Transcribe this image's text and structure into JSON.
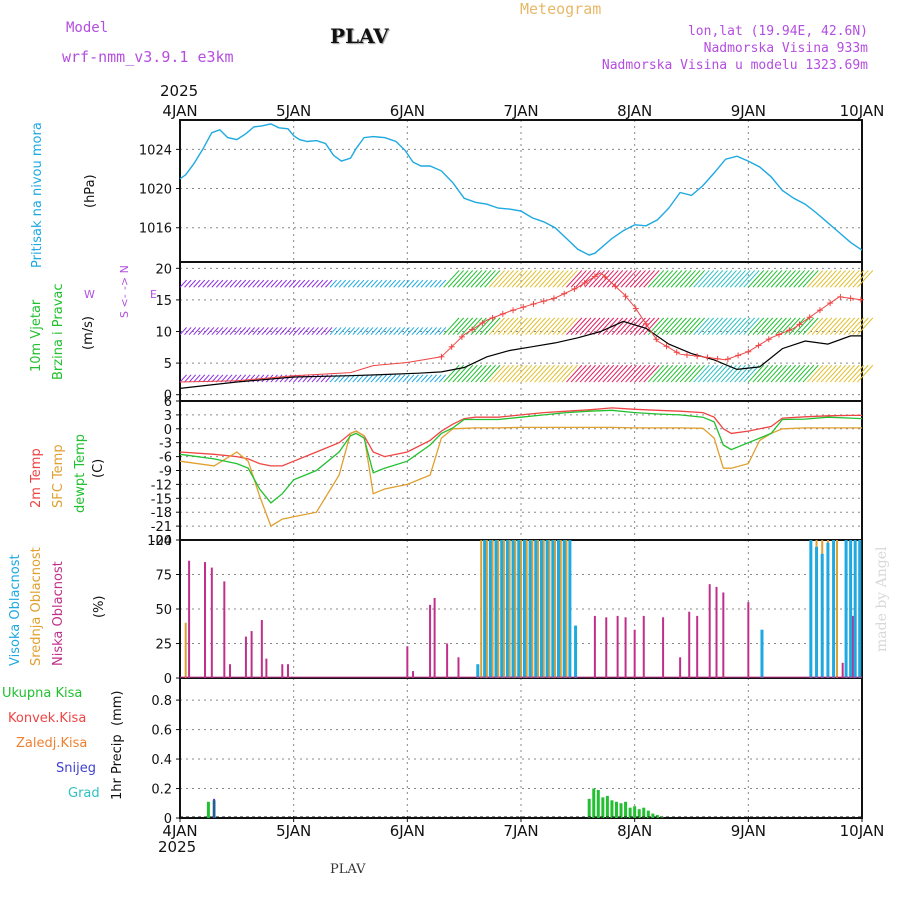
{
  "header": {
    "model_label": "Model",
    "model_name": "wrf-nmm_v3.9.1 e3km",
    "station": "PLAV",
    "title": "Meteogram",
    "coords": "lon,lat (19.94E, 42.6N)",
    "elevation": "Nadmorska Visina 933m",
    "model_elevation": "Nadmorska Visina u modelu 1323.69m",
    "year": "2025",
    "footer_station": "PLAV",
    "watermark": "made by Angel"
  },
  "colors": {
    "pressure": "#1ea9e1",
    "wind_violet": "#8a2be2",
    "grid": "#888888",
    "temp2m": "#ef4444",
    "sfc": "#e0a030",
    "dew": "#22c030",
    "high": "#1ea9e1",
    "mid": "#e0a030",
    "low": "#c0308a",
    "precip_total": "#22c030",
    "conv": "#ef4444",
    "frz": "#f08030",
    "snow": "#4040d0",
    "hail": "#30c0c0"
  },
  "chart_data": {
    "type": "meteogram",
    "x_axis": {
      "labels": [
        "4JAN",
        "5JAN",
        "6JAN",
        "7JAN",
        "8JAN",
        "9JAN",
        "10JAN"
      ],
      "unit": "days",
      "range": [
        0,
        6
      ]
    },
    "panels": {
      "pressure": {
        "type": "line",
        "ylabel": "Pritisak na nivou mora",
        "unit": "(hPa)",
        "ticks": [
          "1016",
          "1020",
          "1024"
        ],
        "ylim": [
          1012.5,
          1027
        ],
        "x": [
          0,
          0.05,
          0.12,
          0.2,
          0.28,
          0.35,
          0.42,
          0.5,
          0.58,
          0.65,
          0.72,
          0.8,
          0.87,
          0.95,
          1.0,
          1.05,
          1.12,
          1.2,
          1.28,
          1.35,
          1.42,
          1.5,
          1.55,
          1.62,
          1.7,
          1.8,
          1.9,
          1.98,
          2.05,
          2.12,
          2.2,
          2.3,
          2.4,
          2.5,
          2.6,
          2.7,
          2.8,
          2.9,
          3.0,
          3.1,
          3.2,
          3.3,
          3.4,
          3.5,
          3.6,
          3.65,
          3.7,
          3.8,
          3.9,
          4.0,
          4.1,
          4.2,
          4.3,
          4.4,
          4.5,
          4.6,
          4.7,
          4.8,
          4.9,
          5.0,
          5.1,
          5.2,
          5.3,
          5.4,
          5.5,
          5.6,
          5.7,
          5.8,
          5.9,
          6.0
        ],
        "values": [
          1021,
          1021.4,
          1022.5,
          1024,
          1025.7,
          1026,
          1025.2,
          1025,
          1025.6,
          1026.3,
          1026.4,
          1026.6,
          1026.2,
          1026.1,
          1025.4,
          1025,
          1024.8,
          1024.9,
          1024.6,
          1023.4,
          1022.8,
          1023.1,
          1024.1,
          1025.2,
          1025.3,
          1025.2,
          1024.8,
          1023.9,
          1022.7,
          1022.3,
          1022.3,
          1021.8,
          1020.6,
          1019,
          1018.6,
          1018.4,
          1018,
          1017.9,
          1017.7,
          1017,
          1016.6,
          1016,
          1014.9,
          1013.8,
          1013.2,
          1013.4,
          1013.9,
          1014.9,
          1015.7,
          1016.3,
          1016.2,
          1016.8,
          1018,
          1019.6,
          1019.3,
          1020.3,
          1021.6,
          1023,
          1023.3,
          1022.8,
          1022.2,
          1021.2,
          1019.8,
          1019,
          1018.4,
          1017.5,
          1016.5,
          1015.5,
          1014.5,
          1013.7
        ]
      },
      "wind": {
        "type": "line",
        "ylabel": "10m Vjetar Brzina i Pravac",
        "unit": "(m/s)",
        "ticks": [
          "0",
          "5",
          "10",
          "15",
          "20"
        ],
        "ylim": [
          -1,
          21
        ],
        "compass": [
          "N",
          "E",
          "S",
          "W"
        ],
        "levels": [
          2,
          9.5,
          17
        ],
        "mean_x": [
          0,
          0.5,
          1.0,
          1.5,
          1.8,
          2.1,
          2.3,
          2.5,
          2.7,
          2.9,
          3.1,
          3.3,
          3.5,
          3.7,
          3.9,
          4.1,
          4.3,
          4.5,
          4.7,
          4.9,
          5.1,
          5.3,
          5.5,
          5.7,
          5.9,
          6.0
        ],
        "mean_values": [
          1,
          2,
          2.8,
          3,
          3.2,
          3.4,
          3.6,
          4.3,
          6,
          7,
          7.6,
          8.2,
          9,
          10,
          11.6,
          10.5,
          8,
          6.5,
          5.5,
          4,
          4.4,
          7.3,
          8.5,
          8,
          9.3,
          9.3
        ],
        "gust_x": [
          0,
          0.5,
          1.0,
          1.5,
          1.7,
          2.0,
          2.3,
          2.5,
          2.7,
          2.9,
          3.1,
          3.3,
          3.5,
          3.7,
          3.9,
          4.0,
          4.2,
          4.4,
          4.6,
          4.8,
          5.0,
          5.2,
          5.4,
          5.6,
          5.8,
          6.0
        ],
        "gust_values": [
          2,
          2.2,
          3,
          3.5,
          4.6,
          5.1,
          6,
          9.5,
          11.8,
          13.2,
          14.3,
          15.3,
          17,
          19.3,
          16,
          13.9,
          8.5,
          6.4,
          6,
          5.5,
          6.8,
          9,
          10.5,
          13,
          15.5,
          15
        ]
      },
      "temperature": {
        "type": "line",
        "ylabel": "2m Temp / SFC Temp / dewpt Temp",
        "unit": "(C)",
        "ticks": [
          "-24",
          "-21",
          "-18",
          "-15",
          "-12",
          "-9",
          "-6",
          "-3",
          "0",
          "3",
          "6"
        ],
        "ylim": [
          -24,
          6
        ],
        "x": [
          0,
          0.3,
          0.5,
          0.6,
          0.7,
          0.8,
          0.9,
          1.0,
          1.2,
          1.4,
          1.5,
          1.55,
          1.62,
          1.7,
          1.8,
          2.0,
          2.2,
          2.3,
          2.4,
          2.5,
          2.6,
          2.8,
          3.0,
          3.2,
          3.4,
          3.6,
          3.8,
          4.0,
          4.2,
          4.4,
          4.6,
          4.7,
          4.78,
          4.85,
          5.0,
          5.1,
          5.2,
          5.3,
          5.5,
          5.7,
          5.9,
          6.0
        ],
        "series": [
          {
            "name": "2m Temp",
            "values": [
              -5,
              -5.5,
              -6,
              -6.5,
              -7.5,
              -8,
              -8,
              -7,
              -5,
              -3,
              -1,
              -0.5,
              -1.5,
              -5,
              -6,
              -5,
              -2.5,
              -0.5,
              1,
              2.2,
              2.5,
              2.5,
              3,
              3.5,
              3.8,
              4.1,
              4.5,
              4.2,
              4,
              3.8,
              3.5,
              2.5,
              0,
              -1,
              -0.5,
              0,
              0.5,
              2.3,
              2.6,
              2.8,
              2.9,
              2.9
            ]
          },
          {
            "name": "SFC Temp",
            "values": [
              -7,
              -8,
              -5,
              -7,
              -14.5,
              -21,
              -19.5,
              -19,
              -18,
              -10,
              -1,
              -0.5,
              -1.5,
              -14,
              -13,
              -12,
              -10,
              -2,
              0,
              0.1,
              0.2,
              0.2,
              0.3,
              0.3,
              0.3,
              0.3,
              0.3,
              0.2,
              0.2,
              0.2,
              0.1,
              -2,
              -8.5,
              -8.5,
              -7.5,
              -2.5,
              -1,
              0,
              0.2,
              0.2,
              0.2,
              0.2
            ]
          },
          {
            "name": "dewpt Temp",
            "values": [
              -5.5,
              -6.5,
              -7.5,
              -8.5,
              -13,
              -16,
              -14,
              -11,
              -9,
              -5,
              -1.5,
              -1,
              -2,
              -9.5,
              -8.5,
              -7,
              -3.5,
              -1,
              0.2,
              2,
              2,
              2,
              2.5,
              3,
              3.5,
              3.8,
              4,
              3.5,
              3.2,
              3,
              2.5,
              1.5,
              -3.5,
              -4.5,
              -3,
              -2,
              -1,
              2,
              2.1,
              2.5,
              2.3,
              2.2
            ]
          }
        ]
      },
      "clouds": {
        "type": "bar",
        "ylabel": "Visoka / Srednja / Niska Oblacnost",
        "unit": "(%)",
        "ticks": [
          "0",
          "25",
          "50",
          "75",
          "100"
        ],
        "ylim": [
          0,
          100
        ],
        "low_x": [
          0.08,
          0.22,
          0.28,
          0.39,
          0.44,
          0.58,
          0.63,
          0.72,
          0.76,
          0.9,
          0.95,
          2.0,
          2.05,
          2.2,
          2.24,
          2.35,
          2.45,
          3.65,
          3.75,
          3.85,
          3.92,
          4.0,
          4.08,
          4.25,
          4.4,
          4.48,
          4.55,
          4.66,
          4.72,
          4.78,
          5.0,
          5.78,
          5.83,
          5.92
        ],
        "low_values": [
          85,
          84,
          80,
          70,
          10,
          30,
          34,
          42,
          14,
          10,
          10,
          23,
          5,
          53,
          58,
          25,
          15,
          45,
          44,
          45,
          44,
          35,
          45,
          44,
          15,
          48,
          45,
          68,
          66,
          62,
          55,
          40,
          11,
          45
        ],
        "mid_x": [
          0.05,
          2.65,
          2.7,
          2.75,
          2.8,
          2.85,
          2.9,
          2.95,
          3.0,
          3.05,
          3.1,
          3.15,
          3.2,
          3.25,
          3.3,
          3.35,
          3.4,
          5.55,
          5.6,
          5.65,
          5.7,
          5.75,
          5.78
        ],
        "mid_values": [
          40,
          100,
          100,
          100,
          100,
          100,
          100,
          100,
          100,
          100,
          100,
          100,
          100,
          100,
          100,
          100,
          100,
          100,
          100,
          100,
          100,
          100,
          100
        ],
        "high_x": [
          2.62,
          2.68,
          2.73,
          2.78,
          2.83,
          2.88,
          2.93,
          2.98,
          3.03,
          3.08,
          3.13,
          3.18,
          3.23,
          3.28,
          3.33,
          3.38,
          3.43,
          3.48,
          5.12,
          5.55,
          5.6,
          5.65,
          5.7,
          5.75,
          5.86,
          5.9,
          5.94,
          5.98
        ],
        "high_values": [
          10,
          100,
          100,
          100,
          100,
          100,
          100,
          100,
          100,
          100,
          100,
          100,
          100,
          100,
          100,
          100,
          100,
          38,
          35,
          100,
          95,
          90,
          98,
          100,
          100,
          100,
          100,
          100
        ]
      },
      "precip": {
        "type": "bar",
        "ylabel": "1hr Precip",
        "unit": "(mm)",
        "ticks": [
          "0",
          "0.2",
          "0.4",
          "0.6",
          "0.8"
        ],
        "ylim": [
          0,
          0.95
        ],
        "legend": [
          "Ukupna Kisa",
          "Konvek.Kisa",
          "Zaledj.Kisa",
          "Snijeg",
          "Grad"
        ],
        "total_x": [
          0.25,
          0.3,
          3.6,
          3.64,
          3.68,
          3.72,
          3.76,
          3.8,
          3.84,
          3.88,
          3.92,
          3.96,
          4.0,
          4.04,
          4.08,
          4.12,
          4.16,
          4.2,
          4.24
        ],
        "total_values": [
          0.11,
          0.12,
          0.13,
          0.2,
          0.19,
          0.14,
          0.15,
          0.12,
          0.11,
          0.1,
          0.11,
          0.07,
          0.08,
          0.06,
          0.07,
          0.05,
          0.03,
          0.02,
          0.01
        ],
        "snow_x": [
          0.3
        ],
        "snow_values": [
          0.13
        ]
      }
    }
  }
}
